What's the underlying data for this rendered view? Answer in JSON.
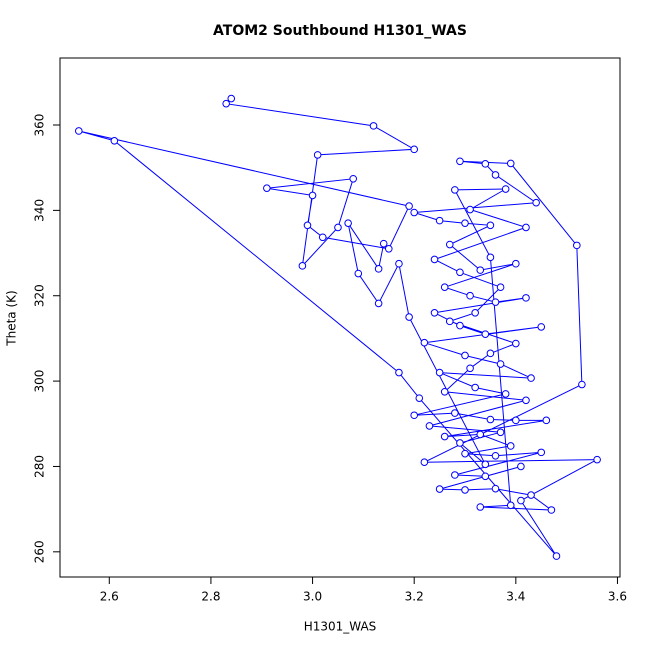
{
  "chart_data": {
    "type": "line",
    "title": "ATOM2 Southbound H1301_WAS",
    "x_label": "H1301_WAS",
    "y_label": "Theta (K)",
    "color": "#0000ff",
    "markers": true,
    "xlim": [
      2.503,
      3.605
    ],
    "ylim": [
      254.1,
      375.7
    ],
    "xticks": [
      2.6,
      2.8,
      {
        "value": 3,
        "label": "3.0"
      },
      3.2,
      3.4,
      3.6
    ],
    "yticks": [
      260,
      280,
      300,
      320,
      340,
      360
    ],
    "x": [
      2.84,
      2.83,
      3.12,
      3.2,
      3.01,
      2.98,
      3.05,
      3.08,
      2.91,
      3.0,
      2.99,
      3.02,
      3.15,
      3.19,
      2.54,
      2.61,
      3.17,
      3.21,
      3.48,
      3.41,
      3.56,
      3.22,
      3.53,
      3.52,
      3.39,
      3.29,
      3.34,
      3.36,
      3.44,
      3.2,
      3.25,
      3.3,
      3.35,
      3.27,
      3.33,
      3.4,
      3.26,
      3.31,
      3.36,
      3.42,
      3.24,
      3.29,
      3.34,
      3.45,
      3.22,
      3.3,
      3.37,
      3.43,
      3.25,
      3.32,
      3.38,
      3.2,
      3.28,
      3.35,
      3.4,
      3.46,
      3.26,
      3.33,
      3.39,
      3.3,
      3.36,
      3.45,
      3.28,
      3.34,
      3.41,
      3.25,
      3.3,
      3.36,
      3.43,
      3.47,
      3.33,
      3.39,
      3.35,
      3.28,
      3.38,
      3.31,
      3.42,
      3.24,
      3.29,
      3.37,
      3.32,
      3.27,
      3.4,
      3.35,
      3.31,
      3.26,
      3.42,
      3.23,
      3.37,
      3.29,
      3.34,
      3.19,
      3.17,
      3.13,
      3.09,
      3.07,
      3.13,
      3.14
    ],
    "values": [
      366.2,
      365,
      359.8,
      354.3,
      353,
      327,
      336,
      347.4,
      345.2,
      343.5,
      336.5,
      333.7,
      331,
      341,
      358.6,
      356.3,
      302,
      296,
      259,
      272,
      281.6,
      281,
      299.2,
      331.8,
      351,
      351.5,
      350.9,
      348.3,
      341.8,
      339.5,
      337.6,
      337,
      336.5,
      332,
      326,
      327.5,
      322,
      320,
      318.5,
      319.5,
      316,
      313,
      311,
      312.7,
      309,
      306,
      304,
      300.7,
      302,
      298.5,
      297,
      292,
      292.5,
      291,
      290.8,
      290.8,
      287,
      287.5,
      284.8,
      283,
      282.5,
      283.3,
      278,
      277.7,
      280,
      274.7,
      274.5,
      274.8,
      273.3,
      269.8,
      270.5,
      270.9,
      329,
      344.8,
      345,
      340.2,
      336,
      328.5,
      325.5,
      322,
      316,
      314,
      308.8,
      306.5,
      303,
      297.5,
      295.5,
      289.5,
      288,
      285.5,
      280.5,
      315,
      327.5,
      318.2,
      325.2,
      337,
      326.3,
      332.2
    ]
  }
}
